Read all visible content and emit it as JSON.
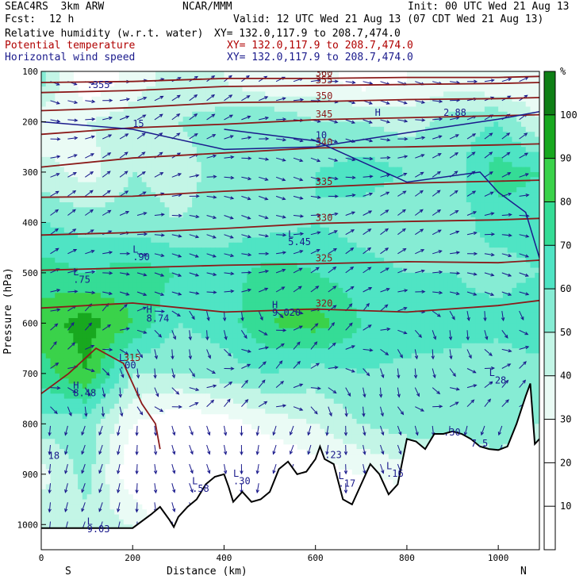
{
  "header": {
    "model": "SEAC4RS  3km ARW",
    "center": "NCAR/MMM",
    "init": "Init: 00 UTC Wed 21 Aug 13",
    "fcst_label": "Fcst:",
    "fcst_value": "12 h",
    "valid": "Valid: 12 UTC Wed 21 Aug 13 (07 CDT Wed 21 Aug 13)",
    "field1_name": "Relative humidity (w.r.t. water)",
    "field1_xy": "XY= 132.0,117.9 to 208.7,474.0",
    "field2_name": "Potential temperature",
    "field2_xy": "XY= 132.0,117.9 to 208.7,474.0",
    "field3_name": "Horizontal wind speed",
    "field3_xy": "XY= 132.0,117.9 to 208.7,474.0"
  },
  "colors": {
    "rh_levels": [
      "#ffffff",
      "#ffffff",
      "#ffffff",
      "#eafbf5",
      "#c3f5e6",
      "#86ecd4",
      "#4fe4c4",
      "#35dc96",
      "#3ad24a",
      "#18a81f",
      "#0f7f16"
    ],
    "theta": "#8b1a1a",
    "wind": "#1a1a8c",
    "terrain": "#000000"
  },
  "chart_data": {
    "type": "heatmap",
    "xlabel": "Distance (km)",
    "ylabel": "Pressure (hPa)",
    "xlim": [
      0,
      1090
    ],
    "ylim": [
      1050,
      100
    ],
    "x_ticks": [
      "0",
      "200",
      "400",
      "600",
      "800",
      "1000"
    ],
    "x_tick_values": [
      0,
      200,
      400,
      600,
      800,
      1000
    ],
    "y_ticks": [
      "100",
      "200",
      "300",
      "400",
      "500",
      "600",
      "700",
      "800",
      "900",
      "1000"
    ],
    "y_tick_values": [
      100,
      200,
      300,
      400,
      500,
      600,
      700,
      800,
      900,
      1000
    ],
    "x_endpoints": {
      "left": "S",
      "right": "N"
    },
    "colorbar": {
      "unit": "%",
      "ticks": [
        "10",
        "20",
        "30",
        "40",
        "50",
        "60",
        "70",
        "80",
        "90",
        "100"
      ],
      "tick_values": [
        10,
        20,
        30,
        40,
        50,
        60,
        70,
        80,
        90,
        100
      ],
      "range": [
        0,
        110
      ]
    },
    "rh_x": [
      0,
      100,
      200,
      300,
      400,
      500,
      600,
      700,
      800,
      900,
      1000,
      1090
    ],
    "rh_p": [
      1000,
      900,
      800,
      700,
      600,
      500,
      400,
      300,
      200,
      120
    ],
    "rh_values": [
      [
        50,
        45,
        40,
        20,
        15,
        10,
        10,
        10,
        10,
        20,
        30,
        20
      ],
      [
        35,
        55,
        20,
        15,
        10,
        15,
        25,
        30,
        35,
        40,
        45,
        40
      ],
      [
        55,
        55,
        30,
        20,
        25,
        35,
        40,
        50,
        55,
        55,
        55,
        50
      ],
      [
        75,
        90,
        50,
        50,
        55,
        60,
        55,
        60,
        55,
        55,
        50,
        55
      ],
      [
        85,
        95,
        80,
        60,
        65,
        80,
        85,
        70,
        70,
        65,
        65,
        70
      ],
      [
        75,
        70,
        75,
        70,
        65,
        75,
        70,
        65,
        60,
        60,
        55,
        60
      ],
      [
        60,
        55,
        55,
        50,
        55,
        55,
        60,
        55,
        50,
        55,
        65,
        65
      ],
      [
        45,
        35,
        50,
        45,
        55,
        55,
        60,
        65,
        60,
        55,
        75,
        70
      ],
      [
        30,
        40,
        45,
        50,
        55,
        60,
        50,
        50,
        45,
        55,
        60,
        40
      ],
      [
        55,
        20,
        35,
        45,
        40,
        30,
        35,
        25,
        30,
        35,
        30,
        30
      ]
    ],
    "theta_contours": [
      {
        "label": "315",
        "points": [
          [
            0,
            740
          ],
          [
            60,
            700
          ],
          [
            120,
            650
          ],
          [
            180,
            680
          ],
          [
            220,
            760
          ],
          [
            250,
            800
          ],
          [
            260,
            850
          ]
        ]
      },
      {
        "label": "320",
        "points": [
          [
            0,
            570
          ],
          [
            200,
            560
          ],
          [
            400,
            578
          ],
          [
            600,
            572
          ],
          [
            800,
            578
          ],
          [
            1000,
            565
          ],
          [
            1090,
            555
          ]
        ]
      },
      {
        "label": "325",
        "points": [
          [
            0,
            495
          ],
          [
            200,
            490
          ],
          [
            400,
            485
          ],
          [
            600,
            482
          ],
          [
            800,
            478
          ],
          [
            1000,
            480
          ],
          [
            1090,
            475
          ]
        ]
      },
      {
        "label": "330",
        "points": [
          [
            0,
            425
          ],
          [
            200,
            420
          ],
          [
            400,
            412
          ],
          [
            600,
            402
          ],
          [
            800,
            398
          ],
          [
            1000,
            395
          ],
          [
            1090,
            392
          ]
        ]
      },
      {
        "label": "335",
        "points": [
          [
            0,
            350
          ],
          [
            200,
            348
          ],
          [
            400,
            338
          ],
          [
            600,
            330
          ],
          [
            800,
            322
          ],
          [
            1000,
            318
          ],
          [
            1090,
            316
          ]
        ]
      },
      {
        "label": "340",
        "points": [
          [
            0,
            290
          ],
          [
            200,
            272
          ],
          [
            400,
            262
          ],
          [
            600,
            252
          ],
          [
            800,
            250
          ],
          [
            1000,
            246
          ],
          [
            1090,
            244
          ]
        ]
      },
      {
        "label": "345",
        "points": [
          [
            0,
            225
          ],
          [
            200,
            212
          ],
          [
            400,
            205
          ],
          [
            600,
            196
          ],
          [
            800,
            192
          ],
          [
            1000,
            188
          ],
          [
            1090,
            186
          ]
        ]
      },
      {
        "label": "350",
        "points": [
          [
            0,
            178
          ],
          [
            200,
            172
          ],
          [
            400,
            162
          ],
          [
            600,
            160
          ],
          [
            800,
            156
          ],
          [
            1000,
            154
          ],
          [
            1090,
            152
          ]
        ]
      },
      {
        "label": "355",
        "points": [
          [
            0,
            142
          ],
          [
            200,
            138
          ],
          [
            400,
            130
          ],
          [
            600,
            128
          ],
          [
            800,
            126
          ],
          [
            1000,
            124
          ],
          [
            1090,
            122
          ]
        ]
      },
      {
        "label": "360",
        "points": [
          [
            0,
            122
          ],
          [
            200,
            120
          ],
          [
            400,
            114
          ],
          [
            600,
            114
          ],
          [
            800,
            112
          ],
          [
            1000,
            112
          ],
          [
            1090,
            110
          ]
        ]
      }
    ],
    "wind_contours": [
      {
        "label": "10",
        "points": [
          [
            400,
            215
          ],
          [
            600,
            238
          ],
          [
            800,
            320
          ],
          [
            960,
            300
          ],
          [
            1000,
            340
          ],
          [
            1060,
            380
          ],
          [
            1090,
            470
          ]
        ]
      },
      {
        "label": "15",
        "points": [
          [
            0,
            200
          ],
          [
            200,
            215
          ],
          [
            400,
            255
          ],
          [
            600,
            250
          ],
          [
            800,
            222
          ],
          [
            1000,
            195
          ],
          [
            1090,
            180
          ]
        ]
      }
    ],
    "labels": [
      {
        "text": "H",
        "x": 505,
        "p": 570
      },
      {
        "text": "9.020",
        "x": 505,
        "p": 585
      },
      {
        "text": "H",
        "x": 230,
        "p": 580
      },
      {
        "text": "8.74",
        "x": 230,
        "p": 597
      },
      {
        "text": "L",
        "x": 200,
        "p": 460
      },
      {
        "text": ".90",
        "x": 200,
        "p": 475
      },
      {
        "text": "L",
        "x": 70,
        "p": 505
      },
      {
        "text": ".75",
        "x": 70,
        "p": 520
      },
      {
        "text": "H",
        "x": 70,
        "p": 730
      },
      {
        "text": "8.48",
        "x": 70,
        "p": 745
      },
      {
        "text": "L",
        "x": 170,
        "p": 675
      },
      {
        "text": ".00",
        "x": 170,
        "p": 690
      },
      {
        "text": "L",
        "x": 540,
        "p": 430
      },
      {
        "text": "5.45",
        "x": 540,
        "p": 445
      },
      {
        "text": "L",
        "x": 420,
        "p": 905
      },
      {
        "text": ".30",
        "x": 420,
        "p": 920
      },
      {
        "text": "L",
        "x": 330,
        "p": 920
      },
      {
        "text": ".58",
        "x": 330,
        "p": 935
      },
      {
        "text": "L",
        "x": 650,
        "p": 910
      },
      {
        "text": ".17",
        "x": 650,
        "p": 925
      },
      {
        "text": "L",
        "x": 755,
        "p": 890
      },
      {
        "text": ".16",
        "x": 755,
        "p": 905
      },
      {
        "text": "L",
        "x": 980,
        "p": 705
      },
      {
        "text": ".28",
        "x": 980,
        "p": 720
      },
      {
        "text": "L",
        "x": 100,
        "p": 1000
      },
      {
        "text": "9.03",
        "x": 100,
        "p": 1015
      },
      {
        "text": "18",
        "x": 15,
        "p": 870
      },
      {
        "text": ".30",
        "x": 880,
        "p": 823
      },
      {
        "text": ".23",
        "x": 620,
        "p": 868
      },
      {
        "text": "7.5",
        "x": 940,
        "p": 845
      },
      {
        "text": ".355",
        "x": 100,
        "p": 133
      },
      {
        "text": "H",
        "x": 730,
        "p": 188
      },
      {
        "text": "2.88",
        "x": 880,
        "p": 188
      }
    ],
    "terrain": {
      "x": [
        0,
        100,
        200,
        240,
        260,
        280,
        290,
        300,
        320,
        340,
        360,
        380,
        400,
        410,
        420,
        440,
        460,
        480,
        500,
        520,
        540,
        560,
        580,
        600,
        610,
        620,
        640,
        660,
        680,
        700,
        720,
        740,
        760,
        780,
        800,
        820,
        840,
        860,
        880,
        900,
        920,
        940,
        960,
        980,
        1000,
        1020,
        1040,
        1060,
        1070,
        1080,
        1090
      ],
      "p": [
        1007,
        1007,
        1007,
        980,
        965,
        990,
        1005,
        985,
        965,
        950,
        920,
        905,
        900,
        925,
        955,
        935,
        955,
        950,
        935,
        890,
        875,
        900,
        895,
        870,
        845,
        870,
        880,
        950,
        960,
        920,
        880,
        900,
        940,
        920,
        830,
        835,
        850,
        820,
        820,
        815,
        820,
        830,
        845,
        850,
        852,
        845,
        800,
        745,
        720,
        840,
        830
      ]
    }
  }
}
